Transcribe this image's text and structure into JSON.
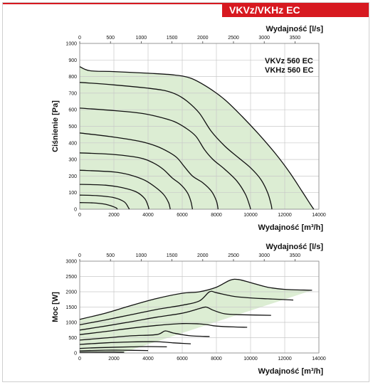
{
  "header": {
    "title": "VKVz/VKHz EC",
    "accent_color": "#d71920"
  },
  "chart_data": [
    {
      "type": "line",
      "title": "",
      "models": [
        "VKVz 560 EC",
        "VKHz 560 EC"
      ],
      "xlabel": "Wydajność [m³/h]",
      "x2label": "Wydajność [l/s]",
      "ylabel": "Ciśnienie [Pa]",
      "xlim": [
        0,
        14000
      ],
      "ylim": [
        0,
        1000
      ],
      "x_ticks": [
        0,
        2000,
        4000,
        6000,
        8000,
        10000,
        12000,
        14000
      ],
      "x2_ticks": [
        0,
        500,
        1000,
        1500,
        2000,
        2500,
        3000,
        3500
      ],
      "y_ticks": [
        0,
        100,
        200,
        300,
        400,
        500,
        600,
        700,
        800,
        900,
        1000
      ],
      "grid": true,
      "fill_color": "#dcedd3",
      "series": [
        {
          "values": [
            [
              0,
              860
            ],
            [
              600,
              835
            ],
            [
              2000,
              830
            ],
            [
              4000,
              820
            ],
            [
              5500,
              810
            ],
            [
              6500,
              790
            ],
            [
              7500,
              735
            ],
            [
              8500,
              660
            ],
            [
              9500,
              560
            ],
            [
              10500,
              450
            ],
            [
              11500,
              330
            ],
            [
              12300,
              220
            ],
            [
              13000,
              110
            ],
            [
              13500,
              30
            ],
            [
              13700,
              0
            ]
          ]
        },
        {
          "values": [
            [
              0,
              765
            ],
            [
              2000,
              750
            ],
            [
              4000,
              730
            ],
            [
              5000,
              715
            ],
            [
              5700,
              690
            ],
            [
              6300,
              650
            ],
            [
              7000,
              580
            ],
            [
              7700,
              470
            ],
            [
              8500,
              380
            ],
            [
              9300,
              310
            ],
            [
              10000,
              250
            ],
            [
              10600,
              180
            ],
            [
              11000,
              100
            ],
            [
              11200,
              30
            ],
            [
              11250,
              0
            ]
          ]
        },
        {
          "values": [
            [
              0,
              610
            ],
            [
              2000,
              595
            ],
            [
              3500,
              580
            ],
            [
              4500,
              560
            ],
            [
              5500,
              530
            ],
            [
              6200,
              490
            ],
            [
              6800,
              440
            ],
            [
              7300,
              360
            ],
            [
              7800,
              300
            ],
            [
              8500,
              240
            ],
            [
              9200,
              170
            ],
            [
              9700,
              90
            ],
            [
              9950,
              20
            ],
            [
              10000,
              0
            ]
          ]
        },
        {
          "values": [
            [
              0,
              460
            ],
            [
              2000,
              435
            ],
            [
              3500,
              410
            ],
            [
              4500,
              380
            ],
            [
              5200,
              345
            ],
            [
              5700,
              310
            ],
            [
              6100,
              260
            ],
            [
              6600,
              200
            ],
            [
              7200,
              160
            ],
            [
              7700,
              110
            ],
            [
              8000,
              50
            ],
            [
              8100,
              0
            ]
          ]
        },
        {
          "values": [
            [
              0,
              340
            ],
            [
              2000,
              330
            ],
            [
              3500,
              310
            ],
            [
              4300,
              280
            ],
            [
              4900,
              240
            ],
            [
              5400,
              190
            ],
            [
              5900,
              150
            ],
            [
              6300,
              100
            ],
            [
              6500,
              50
            ],
            [
              6600,
              0
            ]
          ]
        },
        {
          "values": [
            [
              0,
              235
            ],
            [
              2000,
              225
            ],
            [
              3000,
              205
            ],
            [
              3800,
              175
            ],
            [
              4400,
              135
            ],
            [
              4900,
              90
            ],
            [
              5200,
              40
            ],
            [
              5300,
              0
            ]
          ]
        },
        {
          "values": [
            [
              0,
              150
            ],
            [
              1500,
              145
            ],
            [
              2500,
              130
            ],
            [
              3300,
              105
            ],
            [
              3800,
              65
            ],
            [
              4000,
              20
            ],
            [
              4050,
              0
            ]
          ]
        },
        {
          "values": [
            [
              0,
              85
            ],
            [
              1000,
              82
            ],
            [
              2000,
              70
            ],
            [
              2600,
              45
            ],
            [
              2850,
              10
            ],
            [
              2900,
              0
            ]
          ]
        },
        {
          "values": [
            [
              0,
              40
            ],
            [
              800,
              38
            ],
            [
              1500,
              30
            ],
            [
              2100,
              10
            ],
            [
              2200,
              0
            ]
          ]
        }
      ]
    },
    {
      "type": "line",
      "title": "",
      "xlabel": "Wydajność [m³/h]",
      "x2label": "Wydajność [l/s]",
      "ylabel": "Moc [W]",
      "xlim": [
        0,
        14000
      ],
      "ylim": [
        0,
        3000
      ],
      "x_ticks": [
        0,
        2000,
        4000,
        6000,
        8000,
        10000,
        12000,
        14000
      ],
      "x2_ticks": [
        0,
        500,
        1000,
        1500,
        2000,
        2500,
        3000,
        3500
      ],
      "y_ticks": [
        0,
        500,
        1000,
        1500,
        2000,
        2500,
        3000
      ],
      "grid": true,
      "fill_color": "#dcedd3",
      "series": [
        {
          "values": [
            [
              0,
              1100
            ],
            [
              1500,
              1300
            ],
            [
              3000,
              1550
            ],
            [
              4500,
              1780
            ],
            [
              6000,
              1950
            ],
            [
              7000,
              2000
            ],
            [
              8000,
              2150
            ],
            [
              8800,
              2380
            ],
            [
              9300,
              2400
            ],
            [
              10000,
              2300
            ],
            [
              11000,
              2150
            ],
            [
              12000,
              2080
            ],
            [
              13600,
              2050
            ]
          ]
        },
        {
          "values": [
            [
              0,
              920
            ],
            [
              1500,
              1080
            ],
            [
              3000,
              1250
            ],
            [
              4500,
              1420
            ],
            [
              6000,
              1560
            ],
            [
              7000,
              1700
            ],
            [
              7600,
              2000
            ],
            [
              8000,
              1970
            ],
            [
              9000,
              1850
            ],
            [
              10000,
              1800
            ],
            [
              11000,
              1770
            ],
            [
              12500,
              1730
            ]
          ]
        },
        {
          "values": [
            [
              0,
              750
            ],
            [
              1500,
              880
            ],
            [
              3000,
              1020
            ],
            [
              4500,
              1170
            ],
            [
              6000,
              1300
            ],
            [
              7000,
              1450
            ],
            [
              7400,
              1500
            ],
            [
              7800,
              1400
            ],
            [
              8500,
              1280
            ],
            [
              9500,
              1250
            ],
            [
              11200,
              1230
            ]
          ]
        },
        {
          "values": [
            [
              0,
              600
            ],
            [
              1500,
              700
            ],
            [
              3000,
              810
            ],
            [
              4500,
              900
            ],
            [
              6000,
              960
            ],
            [
              7000,
              950
            ],
            [
              7500,
              920
            ],
            [
              8000,
              880
            ],
            [
              9000,
              850
            ],
            [
              9800,
              840
            ]
          ]
        },
        {
          "values": [
            [
              0,
              420
            ],
            [
              1500,
              490
            ],
            [
              3000,
              560
            ],
            [
              4500,
              600
            ],
            [
              5000,
              720
            ],
            [
              5500,
              650
            ],
            [
              6500,
              560
            ],
            [
              7600,
              540
            ]
          ]
        },
        {
          "values": [
            [
              0,
              280
            ],
            [
              1500,
              330
            ],
            [
              3000,
              360
            ],
            [
              4500,
              370
            ],
            [
              5500,
              330
            ],
            [
              6500,
              300
            ]
          ]
        },
        {
          "values": [
            [
              0,
              150
            ],
            [
              1500,
              180
            ],
            [
              3000,
              200
            ],
            [
              4000,
              210
            ],
            [
              5100,
              200
            ]
          ]
        },
        {
          "values": [
            [
              0,
              70
            ],
            [
              1500,
              90
            ],
            [
              2500,
              90
            ],
            [
              4000,
              80
            ]
          ]
        },
        {
          "values": [
            [
              0,
              25
            ],
            [
              1000,
              30
            ],
            [
              2000,
              30
            ],
            [
              2600,
              25
            ]
          ]
        }
      ]
    }
  ]
}
